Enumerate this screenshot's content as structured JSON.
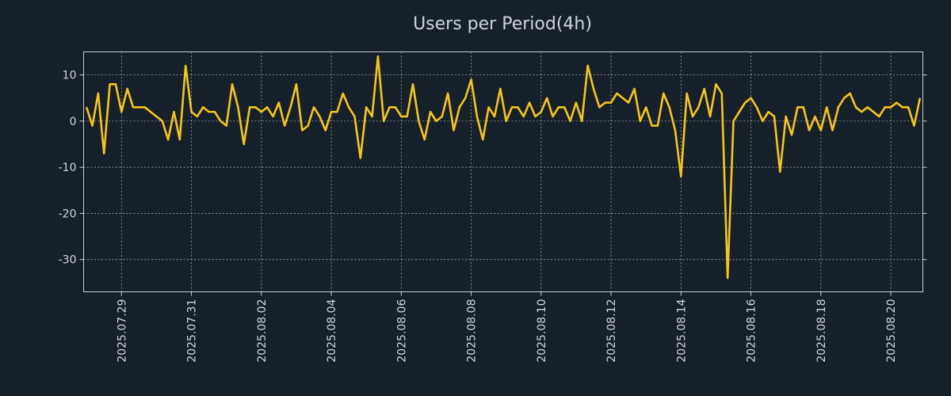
{
  "colors": {
    "background": "#15202b",
    "line": "#f5c518",
    "text": "#d0d4da",
    "grid": "#c9ced6"
  },
  "chart_data": {
    "type": "line",
    "title": "Users per Period(4h)",
    "xlabel": "",
    "ylabel": "",
    "ylim": [
      -37,
      15
    ],
    "xlim": [
      "2025-07-28 00:00",
      "2025-08-20 20:00"
    ],
    "grid": true,
    "x_tick_labels": [
      "2025.07.29",
      "2025.07.31",
      "2025.08.02",
      "2025.08.04",
      "2025.08.06",
      "2025.08.08",
      "2025.08.10",
      "2025.08.12",
      "2025.08.14",
      "2025.08.16",
      "2025.08.18",
      "2025.08.20"
    ],
    "y_ticks": [
      10,
      0,
      -10,
      -20,
      -30
    ],
    "x": [
      "2025-07-28 00:00",
      "2025-07-28 04:00",
      "2025-07-28 08:00",
      "2025-07-28 12:00",
      "2025-07-28 16:00",
      "2025-07-28 20:00",
      "2025-07-29 00:00",
      "2025-07-29 04:00",
      "2025-07-29 08:00",
      "2025-07-29 12:00",
      "2025-07-29 16:00",
      "2025-07-29 20:00",
      "2025-07-30 00:00",
      "2025-07-30 04:00",
      "2025-07-30 08:00",
      "2025-07-30 12:00",
      "2025-07-30 16:00",
      "2025-07-30 20:00",
      "2025-07-31 00:00",
      "2025-07-31 04:00",
      "2025-07-31 08:00",
      "2025-07-31 12:00",
      "2025-07-31 16:00",
      "2025-07-31 20:00",
      "2025-08-01 00:00",
      "2025-08-01 04:00",
      "2025-08-01 08:00",
      "2025-08-01 12:00",
      "2025-08-01 16:00",
      "2025-08-01 20:00",
      "2025-08-02 00:00",
      "2025-08-02 04:00",
      "2025-08-02 08:00",
      "2025-08-02 12:00",
      "2025-08-02 16:00",
      "2025-08-02 20:00",
      "2025-08-03 00:00",
      "2025-08-03 04:00",
      "2025-08-03 08:00",
      "2025-08-03 12:00",
      "2025-08-03 16:00",
      "2025-08-03 20:00",
      "2025-08-04 00:00",
      "2025-08-04 04:00",
      "2025-08-04 08:00",
      "2025-08-04 12:00",
      "2025-08-04 16:00",
      "2025-08-04 20:00",
      "2025-08-05 00:00",
      "2025-08-05 04:00",
      "2025-08-05 08:00",
      "2025-08-05 12:00",
      "2025-08-05 16:00",
      "2025-08-05 20:00",
      "2025-08-06 00:00",
      "2025-08-06 04:00",
      "2025-08-06 08:00",
      "2025-08-06 12:00",
      "2025-08-06 16:00",
      "2025-08-06 20:00",
      "2025-08-07 00:00",
      "2025-08-07 04:00",
      "2025-08-07 08:00",
      "2025-08-07 12:00",
      "2025-08-07 16:00",
      "2025-08-07 20:00",
      "2025-08-08 00:00",
      "2025-08-08 04:00",
      "2025-08-08 08:00",
      "2025-08-08 12:00",
      "2025-08-08 16:00",
      "2025-08-08 20:00",
      "2025-08-09 00:00",
      "2025-08-09 04:00",
      "2025-08-09 08:00",
      "2025-08-09 12:00",
      "2025-08-09 16:00",
      "2025-08-09 20:00",
      "2025-08-10 00:00",
      "2025-08-10 04:00",
      "2025-08-10 08:00",
      "2025-08-10 12:00",
      "2025-08-10 16:00",
      "2025-08-10 20:00",
      "2025-08-11 00:00",
      "2025-08-11 04:00",
      "2025-08-11 08:00",
      "2025-08-11 12:00",
      "2025-08-11 16:00",
      "2025-08-11 20:00",
      "2025-08-12 00:00",
      "2025-08-12 04:00",
      "2025-08-12 08:00",
      "2025-08-12 12:00",
      "2025-08-12 16:00",
      "2025-08-12 20:00",
      "2025-08-13 00:00",
      "2025-08-13 04:00",
      "2025-08-13 08:00",
      "2025-08-13 12:00",
      "2025-08-13 16:00",
      "2025-08-13 20:00",
      "2025-08-14 00:00",
      "2025-08-14 04:00",
      "2025-08-14 08:00",
      "2025-08-14 12:00",
      "2025-08-14 16:00",
      "2025-08-14 20:00",
      "2025-08-15 00:00",
      "2025-08-15 04:00",
      "2025-08-15 08:00",
      "2025-08-15 12:00",
      "2025-08-15 16:00",
      "2025-08-15 20:00",
      "2025-08-16 00:00",
      "2025-08-16 04:00",
      "2025-08-16 08:00",
      "2025-08-16 12:00",
      "2025-08-16 16:00",
      "2025-08-16 20:00",
      "2025-08-17 00:00",
      "2025-08-17 04:00",
      "2025-08-17 08:00",
      "2025-08-17 12:00",
      "2025-08-17 16:00",
      "2025-08-17 20:00",
      "2025-08-18 00:00",
      "2025-08-18 04:00",
      "2025-08-18 08:00",
      "2025-08-18 12:00",
      "2025-08-18 16:00",
      "2025-08-18 20:00",
      "2025-08-19 00:00",
      "2025-08-19 04:00",
      "2025-08-19 08:00",
      "2025-08-19 12:00",
      "2025-08-19 16:00",
      "2025-08-19 20:00",
      "2025-08-20 00:00",
      "2025-08-20 04:00",
      "2025-08-20 08:00",
      "2025-08-20 12:00",
      "2025-08-20 16:00",
      "2025-08-20 20:00"
    ],
    "series": [
      {
        "values": [
          3,
          -1,
          6,
          -7,
          8,
          8,
          2,
          7,
          3,
          3,
          3,
          2,
          1,
          0,
          -4,
          2,
          -4,
          12,
          2,
          1,
          3,
          2,
          2,
          0,
          -1,
          8,
          3,
          -5,
          3,
          3,
          2,
          3,
          1,
          4,
          -1,
          3,
          8,
          -2,
          -1,
          3,
          1,
          -2,
          2,
          2,
          6,
          3,
          1,
          -8,
          3,
          1,
          14,
          0,
          3,
          3,
          1,
          1,
          8,
          0,
          -4,
          2,
          0,
          1,
          6,
          -2,
          3,
          5,
          9,
          1,
          -4,
          3,
          1,
          7,
          0,
          3,
          3,
          1,
          4,
          1,
          2,
          5,
          1,
          3,
          3,
          0,
          4,
          0,
          12,
          7,
          3,
          4,
          4,
          6,
          5,
          4,
          7,
          0,
          3,
          -1,
          -1,
          6,
          3,
          -2,
          -12,
          6,
          1,
          3,
          7,
          1,
          8,
          6,
          -34,
          0,
          2,
          4,
          5,
          3,
          0,
          2,
          1,
          -11,
          1,
          -3,
          3,
          3,
          -2,
          1,
          -2,
          3,
          -2,
          3,
          5,
          6,
          3,
          2,
          3,
          2,
          1,
          3,
          3,
          4,
          3,
          3,
          -1,
          5
        ]
      }
    ]
  }
}
